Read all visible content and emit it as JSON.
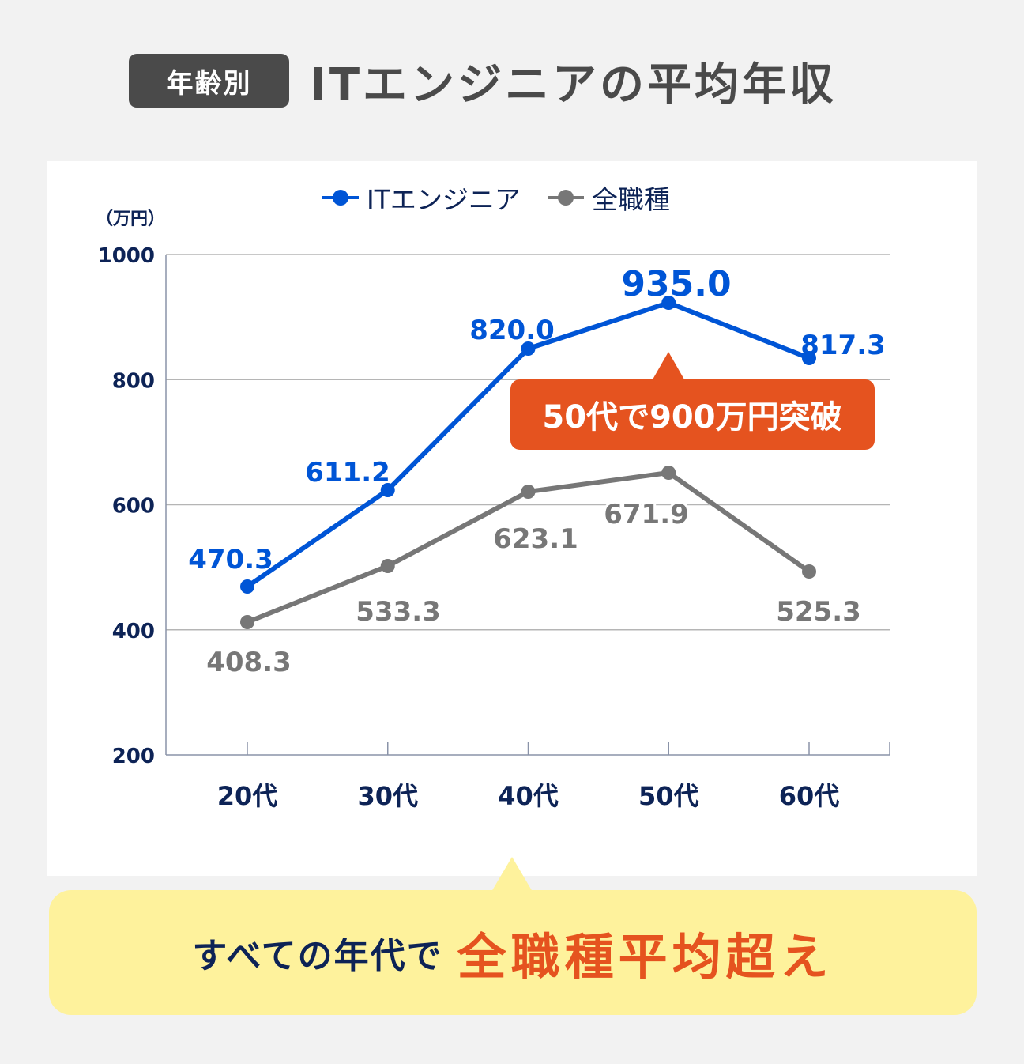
{
  "header": {
    "badge": "年齢別",
    "title": "ITエンジニアの平均年収"
  },
  "legend": [
    {
      "label": "ITエンジニア",
      "color": "#0055d6"
    },
    {
      "label": "全職種",
      "color": "#777777"
    }
  ],
  "highlight": {
    "label": "50代で900万円突破",
    "color": "#e5531f"
  },
  "callout": {
    "prefix": "すべての年代で",
    "emphasis": "全職種平均超え",
    "background": "#fef29c",
    "emphasis_color": "#e5531f"
  },
  "chart_data": {
    "type": "line",
    "title": "年齢別 ITエンジニアの平均年収",
    "xlabel": "",
    "ylabel": "（万円）",
    "categories": [
      "20代",
      "30代",
      "40代",
      "50代",
      "60代"
    ],
    "series": [
      {
        "name": "ITエンジニア",
        "color": "#0055d6",
        "values": [
          470.3,
          611.2,
          820.0,
          935.0,
          817.3
        ]
      },
      {
        "name": "全職種",
        "color": "#777777",
        "values": [
          408.3,
          533.3,
          623.1,
          671.9,
          525.3
        ]
      }
    ],
    "ylim": [
      200,
      1000
    ],
    "yticks": [
      200,
      400,
      600,
      800,
      1000
    ],
    "grid": true,
    "legend_position": "top",
    "annotations": [
      "50代で900万円突破"
    ]
  }
}
